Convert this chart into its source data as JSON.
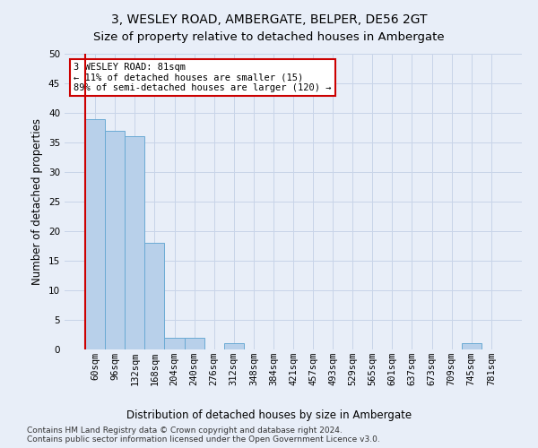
{
  "title": "3, WESLEY ROAD, AMBERGATE, BELPER, DE56 2GT",
  "subtitle": "Size of property relative to detached houses in Ambergate",
  "xlabel": "Distribution of detached houses by size in Ambergate",
  "ylabel": "Number of detached properties",
  "categories": [
    "60sqm",
    "96sqm",
    "132sqm",
    "168sqm",
    "204sqm",
    "240sqm",
    "276sqm",
    "312sqm",
    "348sqm",
    "384sqm",
    "421sqm",
    "457sqm",
    "493sqm",
    "529sqm",
    "565sqm",
    "601sqm",
    "637sqm",
    "673sqm",
    "709sqm",
    "745sqm",
    "781sqm"
  ],
  "values": [
    39,
    37,
    36,
    18,
    2,
    2,
    0,
    1,
    0,
    0,
    0,
    0,
    0,
    0,
    0,
    0,
    0,
    0,
    0,
    1,
    0
  ],
  "bar_color": "#b8d0ea",
  "bar_edge_color": "#6aaad4",
  "grid_color": "#c8d4e8",
  "bg_color": "#e8eef8",
  "annotation_text": "3 WESLEY ROAD: 81sqm\n← 11% of detached houses are smaller (15)\n89% of semi-detached houses are larger (120) →",
  "vline_color": "#cc0000",
  "annotation_box_color": "#ffffff",
  "annotation_box_edge": "#cc0000",
  "ylim": [
    0,
    50
  ],
  "yticks": [
    0,
    5,
    10,
    15,
    20,
    25,
    30,
    35,
    40,
    45,
    50
  ],
  "footnote": "Contains HM Land Registry data © Crown copyright and database right 2024.\nContains public sector information licensed under the Open Government Licence v3.0.",
  "title_fontsize": 10,
  "subtitle_fontsize": 9.5,
  "label_fontsize": 8.5,
  "tick_fontsize": 7.5,
  "footnote_fontsize": 6.5
}
